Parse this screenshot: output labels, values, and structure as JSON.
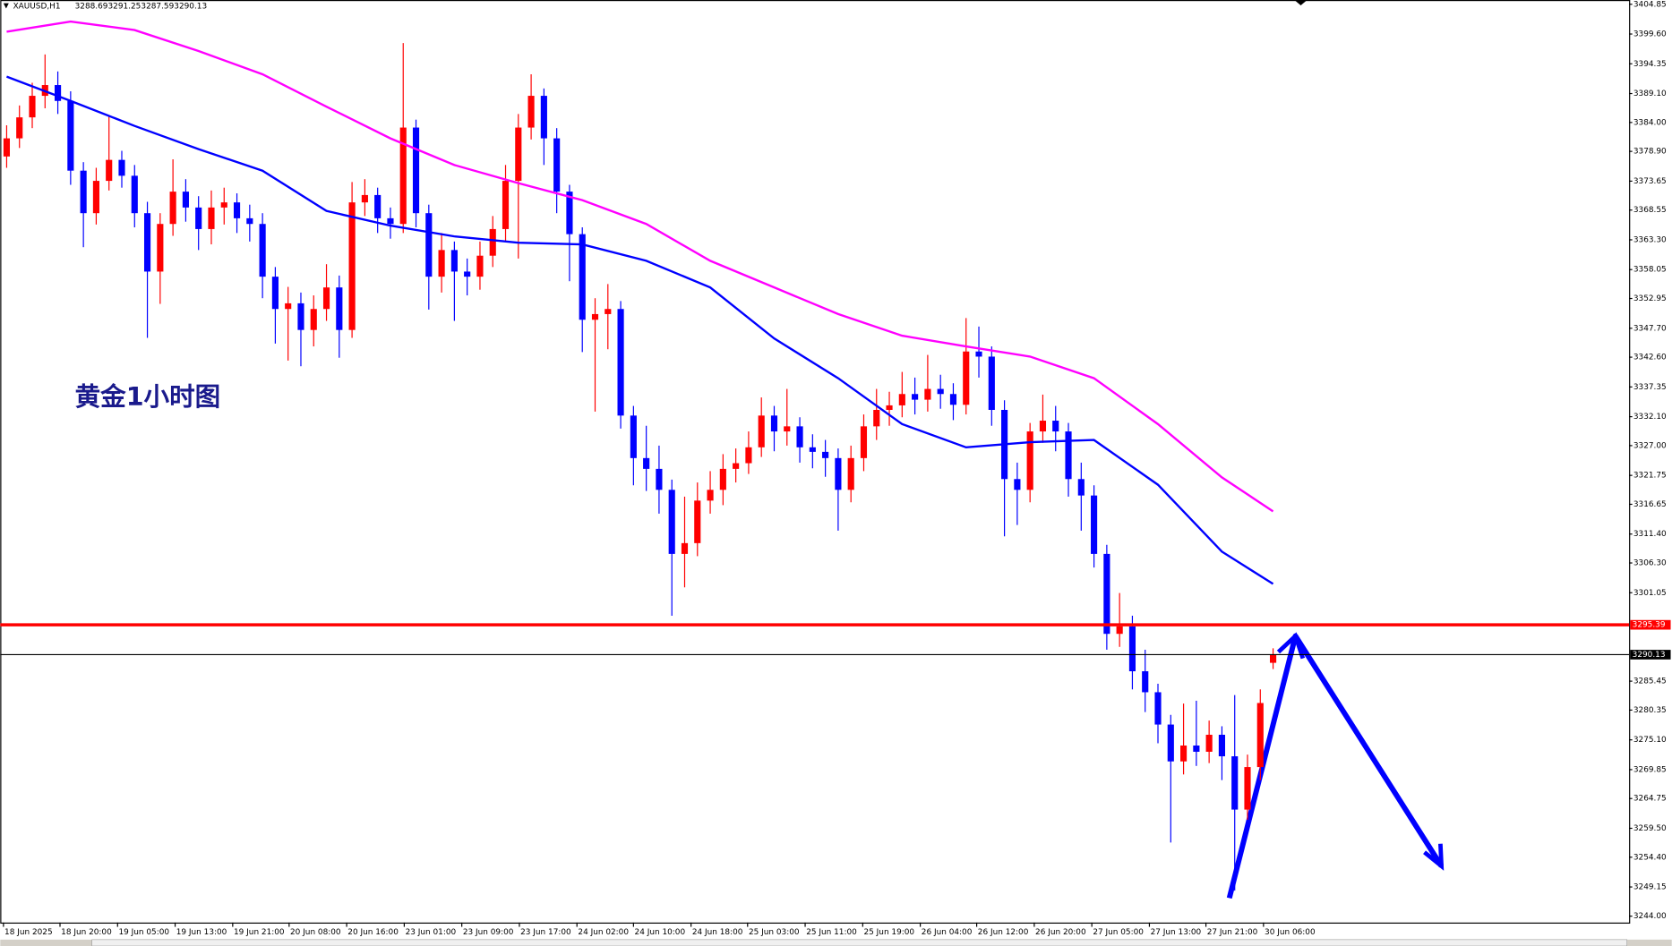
{
  "chart_data": {
    "type": "candlestick",
    "symbol": "XAUUSD,H1",
    "ohlc_header": [
      3288.69,
      3291.25,
      3287.59,
      3290.13
    ],
    "annotation": "黄金1小时图",
    "up_color": "#ff0000",
    "down_color": "#0000ff",
    "open": [
      3378.0,
      3381.2,
      3384.9,
      3388.7,
      3390.6,
      3387.8,
      3375.5,
      3368.0,
      3373.7,
      3377.4,
      3374.6,
      3368.0,
      3357.7,
      3366.1,
      3371.8,
      3369.0,
      3365.2,
      3369.0,
      3369.9,
      3367.1,
      3366.1,
      3356.8,
      3351.1,
      3352.1,
      3347.4,
      3351.1,
      3354.9,
      3347.4,
      3369.9,
      3371.2,
      3367.1,
      3366.1,
      3383.1,
      3368.0,
      3356.8,
      3361.5,
      3357.7,
      3356.8,
      3360.5,
      3365.2,
      3373.7,
      3383.1,
      3388.7,
      3381.2,
      3371.8,
      3364.3,
      3349.2,
      3350.2,
      3351.1,
      3332.3,
      3324.8,
      3322.9,
      3319.2,
      3307.9,
      3309.8,
      3317.3,
      3319.2,
      3322.9,
      3323.9,
      3326.7,
      3332.3,
      3329.5,
      3330.4,
      3326.7,
      3325.9,
      3324.8,
      3319.2,
      3324.8,
      3330.4,
      3333.3,
      3334.1,
      3336.1,
      3335.1,
      3337.0,
      3336.1,
      3334.2,
      3343.6,
      3342.7,
      3333.3,
      3321.1,
      3319.2,
      3329.5,
      3331.4,
      3329.5,
      3321.1,
      3318.2,
      3307.9,
      3293.8,
      3295.1,
      3287.2,
      3283.5,
      3277.8,
      3271.3,
      3274.1,
      3273.0,
      3276.0,
      3272.2,
      3262.8,
      3270.3,
      3288.69
    ],
    "high": [
      3383.5,
      3387.0,
      3391.0,
      3396.0,
      3393.0,
      3389.5,
      3377.0,
      3376.0,
      3385.0,
      3379.0,
      3376.5,
      3370.0,
      3368.0,
      3377.5,
      3374.0,
      3371.0,
      3372.0,
      3372.5,
      3371.5,
      3369.5,
      3368.0,
      3358.5,
      3355.0,
      3354.0,
      3353.5,
      3359.0,
      3357.0,
      3373.5,
      3374.0,
      3372.5,
      3369.0,
      3398.0,
      3384.5,
      3369.5,
      3364.5,
      3363.0,
      3360.0,
      3363.0,
      3367.5,
      3376.5,
      3385.5,
      3392.5,
      3390.0,
      3383.0,
      3373.0,
      3365.5,
      3353.0,
      3355.5,
      3352.5,
      3334.0,
      3330.5,
      3327.0,
      3321.0,
      3318.0,
      3320.5,
      3322.5,
      3325.5,
      3326.5,
      3329.5,
      3335.5,
      3334.0,
      3337.0,
      3332.0,
      3329.0,
      3328.0,
      3326.5,
      3327.0,
      3332.5,
      3337.0,
      3336.5,
      3340.0,
      3339.0,
      3343.0,
      3339.5,
      3338.0,
      3349.5,
      3348.0,
      3344.5,
      3335.0,
      3324.0,
      3331.0,
      3336.0,
      3334.0,
      3331.0,
      3324.0,
      3320.0,
      3309.5,
      3301.0,
      3297.0,
      3291.0,
      3285.0,
      3279.5,
      3281.5,
      3282.0,
      3278.5,
      3277.5,
      3283.0,
      3272.5,
      3284.0,
      3291.25
    ],
    "low": [
      3376.0,
      3379.5,
      3383.0,
      3386.5,
      3385.5,
      3373.0,
      3362.0,
      3366.0,
      3372.0,
      3372.5,
      3365.5,
      3346.0,
      3352.0,
      3364.0,
      3366.5,
      3361.5,
      3362.5,
      3366.0,
      3364.5,
      3363.0,
      3353.0,
      3345.0,
      3342.0,
      3341.0,
      3344.5,
      3349.0,
      3342.5,
      3346.0,
      3367.5,
      3364.5,
      3363.5,
      3364.5,
      3365.5,
      3351.0,
      3354.0,
      3349.0,
      3353.5,
      3354.5,
      3358.5,
      3363.0,
      3360.0,
      3381.0,
      3376.5,
      3368.0,
      3356.0,
      3343.5,
      3333.0,
      3344.0,
      3330.0,
      3320.0,
      3319.0,
      3315.0,
      3297.0,
      3302.0,
      3307.5,
      3315.0,
      3316.5,
      3320.5,
      3322.0,
      3325.0,
      3326.0,
      3327.0,
      3324.0,
      3323.0,
      3321.5,
      3312.0,
      3317.0,
      3322.5,
      3328.0,
      3330.5,
      3332.0,
      3332.5,
      3333.0,
      3333.5,
      3331.5,
      3332.5,
      3339.0,
      3330.5,
      3311.0,
      3313.0,
      3317.0,
      3327.5,
      3326.0,
      3318.0,
      3312.0,
      3305.5,
      3291.0,
      3291.5,
      3284.0,
      3280.0,
      3274.5,
      3257.0,
      3269.0,
      3270.5,
      3271.0,
      3268.0,
      3248.5,
      3261.0,
      3268.0,
      3287.59
    ],
    "close": [
      3381.2,
      3384.9,
      3388.7,
      3390.6,
      3387.8,
      3375.5,
      3368.0,
      3373.7,
      3377.4,
      3374.6,
      3368.0,
      3357.7,
      3366.1,
      3371.8,
      3369.0,
      3365.2,
      3369.0,
      3369.9,
      3367.1,
      3366.1,
      3356.8,
      3351.1,
      3352.1,
      3347.4,
      3351.1,
      3354.9,
      3347.4,
      3369.9,
      3371.2,
      3367.1,
      3366.1,
      3383.1,
      3368.0,
      3356.8,
      3361.5,
      3357.7,
      3356.8,
      3360.5,
      3365.2,
      3373.7,
      3383.1,
      3388.7,
      3381.2,
      3371.8,
      3364.3,
      3349.2,
      3350.2,
      3351.1,
      3332.3,
      3324.8,
      3322.9,
      3319.2,
      3307.9,
      3309.8,
      3317.3,
      3319.2,
      3322.9,
      3323.9,
      3326.7,
      3332.3,
      3329.5,
      3330.4,
      3326.7,
      3325.9,
      3324.8,
      3319.2,
      3324.8,
      3330.4,
      3333.3,
      3334.1,
      3336.1,
      3335.1,
      3337.0,
      3336.1,
      3334.2,
      3343.6,
      3342.7,
      3333.3,
      3321.1,
      3319.2,
      3329.5,
      3331.4,
      3329.5,
      3321.1,
      3318.2,
      3307.9,
      3293.8,
      3295.1,
      3287.2,
      3283.5,
      3277.8,
      3271.3,
      3274.1,
      3273.0,
      3276.0,
      3272.2,
      3262.8,
      3270.3,
      3281.6,
      3290.13
    ],
    "series": [
      {
        "color": "#ff00ff",
        "x": [
          0,
          5,
          10,
          15,
          20,
          25,
          30,
          35,
          40,
          45,
          50,
          55,
          60,
          65,
          70,
          75,
          80,
          85,
          90,
          95,
          99
        ],
        "values": [
          3400.0,
          3401.8,
          3400.3,
          3396.6,
          3392.5,
          3386.8,
          3381.2,
          3376.5,
          3373.3,
          3370.3,
          3366.1,
          3359.6,
          3354.9,
          3350.2,
          3346.4,
          3344.5,
          3342.7,
          3338.9,
          3330.8,
          3321.4,
          3315.4
        ]
      },
      {
        "color": "#0000ff",
        "x": [
          0,
          5,
          10,
          15,
          20,
          25,
          30,
          35,
          40,
          45,
          50,
          55,
          60,
          65,
          70,
          75,
          80,
          85,
          90,
          95,
          99
        ],
        "values": [
          3392.1,
          3387.8,
          3383.4,
          3379.3,
          3375.5,
          3368.4,
          3365.8,
          3363.9,
          3362.8,
          3362.5,
          3359.6,
          3354.9,
          3345.9,
          3338.9,
          3330.8,
          3326.7,
          3327.6,
          3328.0,
          3320.1,
          3308.3,
          3302.6
        ]
      }
    ],
    "hlines": [
      {
        "value": 3295.39,
        "color": "#ff0000"
      },
      {
        "value": 3290.13,
        "color": "#000000"
      }
    ],
    "xlim": [
      -0.5,
      126.83
    ],
    "ylim": [
      3244.0,
      3404.85
    ],
    "yticks": [
      3404.85,
      {
        "value": 3399.6,
        "label": "3399.60"
      },
      3394.35,
      {
        "value": 3389.1,
        "label": "3389.10"
      },
      {
        "value": 3384,
        "label": "3384.00"
      },
      {
        "value": 3378.9,
        "label": "3378.90"
      },
      3373.65,
      3368.55,
      {
        "value": 3363.3,
        "label": "3363.30"
      },
      3358.05,
      3352.95,
      {
        "value": 3347.7,
        "label": "3347.70"
      },
      {
        "value": 3342.6,
        "label": "3342.60"
      },
      3337.35,
      {
        "value": 3332.1,
        "label": "3332.10"
      },
      {
        "value": 3327,
        "label": "3327.00"
      },
      3321.75,
      3316.65,
      {
        "value": 3311.4,
        "label": "3311.40"
      },
      {
        "value": 3306.3,
        "label": "3306.30"
      },
      3301.05,
      3285.45,
      3280.35,
      {
        "value": 3275.1,
        "label": "3275.10"
      },
      3269.85,
      3264.75,
      {
        "value": 3259.5,
        "label": "3259.50"
      },
      {
        "value": 3254.4,
        "label": "3254.40"
      },
      3249.15,
      {
        "value": 3244,
        "label": "3244.00"
      }
    ],
    "xticks": [
      {
        "value": -0.25,
        "label": "18 Jun 2025"
      },
      {
        "value": 4.17,
        "label": "18 Jun 20:00"
      },
      {
        "value": 8.67,
        "label": "19 Jun 05:00"
      },
      {
        "value": 13.17,
        "label": "19 Jun 13:00"
      },
      {
        "value": 17.67,
        "label": "19 Jun 21:00"
      },
      {
        "value": 22.08,
        "label": "20 Jun 08:00"
      },
      {
        "value": 26.58,
        "label": "20 Jun 16:00"
      },
      {
        "value": 31.08,
        "label": "23 Jun 01:00"
      },
      {
        "value": 35.58,
        "label": "23 Jun 09:00"
      },
      {
        "value": 40.08,
        "label": "23 Jun 17:00"
      },
      {
        "value": 44.58,
        "label": "24 Jun 02:00"
      },
      {
        "value": 49,
        "label": "24 Jun 10:00"
      },
      {
        "value": 53.5,
        "label": "24 Jun 18:00"
      },
      {
        "value": 57.92,
        "label": "25 Jun 03:00"
      },
      {
        "value": 62.42,
        "label": "25 Jun 11:00"
      },
      {
        "value": 66.92,
        "label": "25 Jun 19:00"
      },
      {
        "value": 71.42,
        "label": "26 Jun 04:00"
      },
      {
        "value": 75.83,
        "label": "26 Jun 12:00"
      },
      {
        "value": 80.33,
        "label": "26 Jun 20:00"
      },
      {
        "value": 84.83,
        "label": "27 Jun 05:00"
      },
      {
        "value": 89.33,
        "label": "27 Jun 13:00"
      },
      {
        "value": 93.75,
        "label": "27 Jun 21:00"
      },
      {
        "value": 98.25,
        "label": "30 Jun 06:00"
      }
    ]
  }
}
